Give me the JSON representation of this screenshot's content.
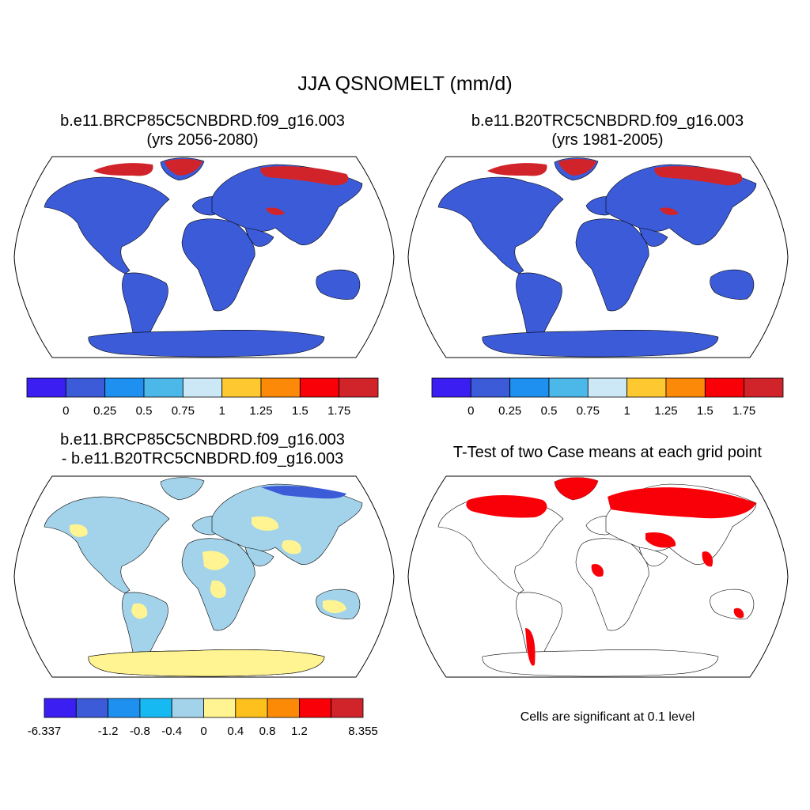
{
  "title": "JJA QSNOMELT (mm/d)",
  "panels": [
    {
      "title_line1": "b.e11.BRCP85C5CNBDRD.f09_g16.003",
      "title_line2": "(yrs 2056-2080)",
      "colorbar": {
        "colors": [
          "#3a1ef2",
          "#3b5bd8",
          "#1e90f0",
          "#4cb8ea",
          "#cce8f7",
          "#fec930",
          "#fc8a08",
          "#f90008",
          "#d1242a"
        ],
        "labels": [
          "0",
          "0.25",
          "0.5",
          "0.75",
          "1",
          "1.25",
          "1.5",
          "1.75"
        ]
      }
    },
    {
      "title_line1": "b.e11.B20TRC5CNBDRD.f09_g16.003",
      "title_line2": "(yrs 1981-2005)",
      "colorbar": {
        "colors": [
          "#3a1ef2",
          "#3b5bd8",
          "#1e90f0",
          "#4cb8ea",
          "#cce8f7",
          "#fec930",
          "#fc8a08",
          "#f90008",
          "#d1242a"
        ],
        "labels": [
          "0",
          "0.25",
          "0.5",
          "0.75",
          "1",
          "1.25",
          "1.5",
          "1.75"
        ]
      }
    },
    {
      "title_line1": "b.e11.BRCP85C5CNBDRD.f09_g16.003",
      "title_line2": "- b.e11.B20TRC5CNBDRD.f09_g16.003",
      "colorbar": {
        "colors": [
          "#3a1ef2",
          "#3b5bd8",
          "#1e90f0",
          "#17b9f2",
          "#a3d3ea",
          "#fff491",
          "#fec01c",
          "#fd8a07",
          "#f90008",
          "#d1242a"
        ],
        "labels": [
          "-6.337",
          "-1.2",
          "-0.8",
          "-0.4",
          "0",
          "0.4",
          "0.8",
          "1.2",
          "8.355"
        ]
      }
    },
    {
      "title_line1": "T-Test of two Case means at each grid point",
      "note": "Cells are significant at 0.1 level"
    }
  ],
  "colors": {
    "ocean": "#ffffff",
    "land_base": "#3b5bd8",
    "land_diff": "#a3d3ea",
    "snow_hot": "#d1242a",
    "antarctica_diff": "#fff491",
    "significant": "#f90008",
    "coast": "#000000"
  }
}
